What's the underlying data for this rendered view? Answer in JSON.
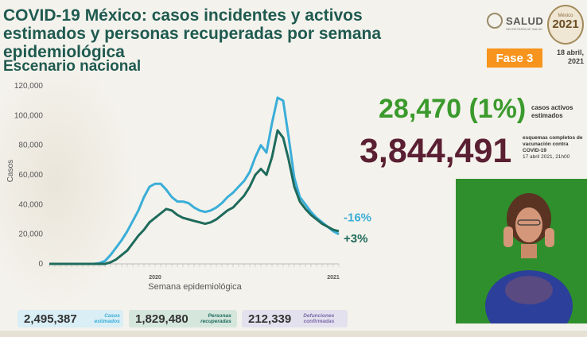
{
  "header": {
    "title": "COVID-19 México: casos incidentes y activos estimados y personas recuperadas por semana epidemiológica",
    "subtitle": "Escenario nacional"
  },
  "logo": {
    "name": "SALUD",
    "subtext": "SECRETARÍA DE SALUD"
  },
  "badge": {
    "country": "México",
    "year": "2021"
  },
  "phase": "Fase 3",
  "date": "18 abril, 2021",
  "active": {
    "value": "28,470 (1%)",
    "label": "casos activos estimados"
  },
  "vaccination": {
    "value": "3,844,491",
    "label": "esquemas completos de vacunación contra COVID-19",
    "date": "17 abril 2021, 21h00"
  },
  "stats": [
    {
      "value": "2,495,387",
      "label": "Casos estimados",
      "color": "#3aaed8",
      "bg": "#d9eef5"
    },
    {
      "value": "1,829,480",
      "label": "Personas recuperadas",
      "color": "#1e6b5c",
      "bg": "#d5e6dd"
    },
    {
      "value": "212,339",
      "label": "Defunciones confirmadas",
      "color": "#7a6aa8",
      "bg": "#e4e1ee"
    }
  ],
  "chart_data": {
    "type": "line",
    "ylabel": "Casos",
    "xlabel": "Semana epidemiológica",
    "ylim": [
      0,
      120000
    ],
    "yticks": [
      0,
      20000,
      40000,
      60000,
      80000,
      100000,
      120000
    ],
    "ytick_labels": [
      "0",
      "20,000",
      "40,000",
      "60,000",
      "80,000",
      "100,000",
      "120,000"
    ],
    "year_labels": [
      {
        "label": "2020",
        "week": 19
      },
      {
        "label": "2021",
        "week": 51
      }
    ],
    "grid": false,
    "series": [
      {
        "key": "incident",
        "color": "#3aaed8",
        "end_label": "-16%",
        "values": [
          0,
          0,
          0,
          0,
          0,
          0,
          0,
          0,
          0,
          500,
          2000,
          6000,
          11000,
          16000,
          22000,
          29000,
          36000,
          45000,
          52000,
          54000,
          54000,
          50000,
          45000,
          42000,
          42000,
          41000,
          38000,
          36000,
          35000,
          36000,
          38000,
          41000,
          45000,
          48000,
          52000,
          56000,
          62000,
          72000,
          80000,
          75000,
          95000,
          112000,
          110000,
          85000,
          58000,
          45000,
          40000,
          35000,
          31000,
          28000,
          25000,
          22000,
          20000
        ]
      },
      {
        "key": "recovered",
        "color": "#1e6b5c",
        "end_label": "+3%",
        "values": [
          0,
          0,
          0,
          0,
          0,
          0,
          0,
          0,
          0,
          0,
          0,
          1000,
          3000,
          6000,
          9000,
          14000,
          19000,
          23000,
          28000,
          31000,
          34000,
          37000,
          36000,
          33000,
          31000,
          30000,
          29000,
          28000,
          27000,
          28000,
          30000,
          33000,
          36000,
          38000,
          42000,
          46000,
          52000,
          60000,
          64000,
          60000,
          72000,
          90000,
          85000,
          70000,
          52000,
          42000,
          37000,
          33000,
          30000,
          27000,
          25000,
          23000,
          22000
        ]
      }
    ]
  }
}
